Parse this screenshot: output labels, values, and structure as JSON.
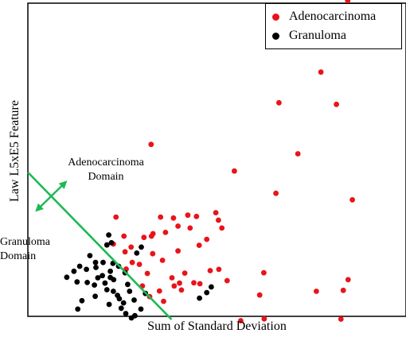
{
  "chart_data": {
    "type": "scatter",
    "xlabel": "Sum of Standard Deviation",
    "ylabel": "Law L5xE5 Feature",
    "xlim": [
      0,
      100
    ],
    "ylim": [
      0,
      100
    ],
    "grid": false,
    "legend_position": "top-right",
    "annotations": {
      "upper": [
        "Adenocarcinoma",
        "Domain"
      ],
      "lower": [
        "Granuloma",
        "Domain"
      ]
    },
    "decision_boundary": {
      "color": "#1db954",
      "from": [
        0,
        46
      ],
      "to": [
        38,
        -1
      ]
    },
    "series": [
      {
        "name": "Adenocarcinoma",
        "color": "#e8141a",
        "points": [
          [
            84.6,
            100.8
          ],
          [
            77.5,
            78.0
          ],
          [
            66.4,
            68.2
          ],
          [
            81.6,
            67.7
          ],
          [
            32.6,
            54.9
          ],
          [
            71.4,
            51.9
          ],
          [
            54.6,
            46.4
          ],
          [
            65.6,
            39.3
          ],
          [
            85.8,
            37.2
          ],
          [
            23.3,
            31.7
          ],
          [
            35.1,
            31.7
          ],
          [
            38.5,
            31.4
          ],
          [
            42.3,
            32.3
          ],
          [
            44.6,
            31.9
          ],
          [
            49.7,
            33.1
          ],
          [
            50.4,
            30.7
          ],
          [
            39.7,
            28.8
          ],
          [
            42.9,
            28.2
          ],
          [
            51.3,
            28.2
          ],
          [
            36.4,
            26.8
          ],
          [
            33.1,
            26.4
          ],
          [
            32.7,
            25.6
          ],
          [
            25.4,
            25.6
          ],
          [
            30.7,
            25.2
          ],
          [
            22.6,
            23.1
          ],
          [
            27.3,
            22.1
          ],
          [
            25.7,
            20.6
          ],
          [
            33.0,
            20.0
          ],
          [
            39.7,
            20.9
          ],
          [
            45.3,
            22.7
          ],
          [
            47.3,
            24.6
          ],
          [
            35.6,
            17.9
          ],
          [
            27.6,
            17.2
          ],
          [
            29.5,
            16.6
          ],
          [
            26.0,
            15.1
          ],
          [
            31.6,
            13.7
          ],
          [
            38.1,
            12.3
          ],
          [
            41.5,
            13.8
          ],
          [
            48.2,
            14.6
          ],
          [
            50.5,
            15.0
          ],
          [
            40.1,
            10.6
          ],
          [
            43.9,
            10.7
          ],
          [
            45.5,
            10.4
          ],
          [
            38.7,
            9.7
          ],
          [
            40.6,
            8.4
          ],
          [
            52.7,
            11.4
          ],
          [
            30.3,
            9.7
          ],
          [
            34.8,
            8.1
          ],
          [
            32.2,
            6.3
          ],
          [
            35.9,
            4.8
          ],
          [
            62.4,
            13.9
          ],
          [
            61.3,
            6.8
          ],
          [
            76.3,
            8.0
          ],
          [
            84.7,
            11.7
          ],
          [
            83.4,
            8.3
          ],
          [
            62.5,
            -0.8
          ],
          [
            56.3,
            -1.4
          ],
          [
            82.8,
            -0.9
          ]
        ]
      },
      {
        "name": "Granuloma",
        "color": "#000000",
        "points": [
          [
            21.4,
            26.0
          ],
          [
            22.1,
            23.5
          ],
          [
            20.9,
            22.8
          ],
          [
            30.0,
            22.1
          ],
          [
            28.8,
            20.2
          ],
          [
            16.4,
            19.4
          ],
          [
            17.9,
            17.2
          ],
          [
            19.9,
            17.2
          ],
          [
            22.5,
            16.9
          ],
          [
            13.7,
            16.0
          ],
          [
            15.5,
            15.0
          ],
          [
            18.0,
            15.6
          ],
          [
            24.0,
            16.0
          ],
          [
            12.2,
            14.4
          ],
          [
            19.7,
            13.0
          ],
          [
            21.8,
            14.4
          ],
          [
            25.7,
            13.9
          ],
          [
            10.3,
            12.5
          ],
          [
            13.0,
            11.0
          ],
          [
            21.8,
            12.4
          ],
          [
            22.7,
            11.7
          ],
          [
            18.5,
            12.3
          ],
          [
            20.4,
            10.6
          ],
          [
            15.7,
            10.8
          ],
          [
            26.4,
            10.2
          ],
          [
            17.6,
            10.0
          ],
          [
            20.9,
            8.5
          ],
          [
            22.6,
            8.0
          ],
          [
            26.9,
            8.0
          ],
          [
            31.1,
            7.3
          ],
          [
            23.7,
            6.7
          ],
          [
            17.8,
            6.4
          ],
          [
            24.2,
            5.6
          ],
          [
            28.1,
            5.2
          ],
          [
            14.3,
            5.0
          ],
          [
            25.3,
            4.3
          ],
          [
            21.5,
            3.8
          ],
          [
            24.7,
            2.6
          ],
          [
            13.2,
            2.3
          ],
          [
            29.9,
            2.3
          ],
          [
            25.9,
            0.9
          ],
          [
            28.3,
            0.2
          ],
          [
            27.4,
            -0.5
          ],
          [
            48.5,
            9.4
          ],
          [
            47.3,
            7.6
          ],
          [
            45.4,
            5.8
          ]
        ]
      }
    ]
  }
}
